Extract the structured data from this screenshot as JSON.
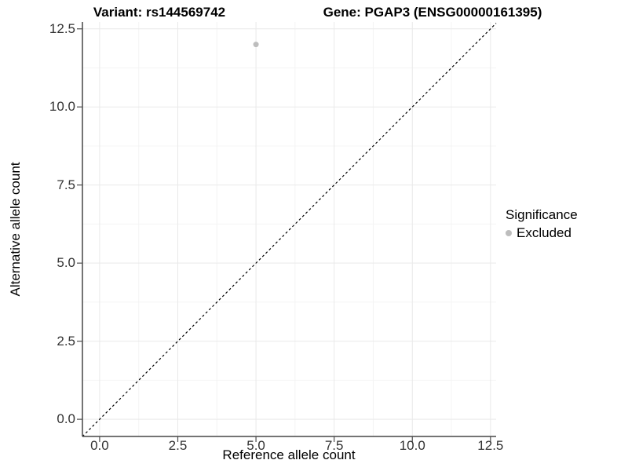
{
  "header": {
    "title_left": "Variant: rs144569742",
    "title_right": "Gene: PGAP3 (ENSG00000161395)"
  },
  "axes": {
    "x_label": "Reference allele count",
    "y_label": "Alternative allele count"
  },
  "legend": {
    "title": "Significance",
    "items": [
      {
        "label": "Excluded",
        "color": "#bdbdbd"
      }
    ]
  },
  "colors": {
    "axis_line": "#464646",
    "tick_mark": "#4d4d4d",
    "tick_text": "#333333",
    "grid_major": "#e9e9e9",
    "grid_minor": "#f4f4f4",
    "identity_line": "#000000",
    "point": "#bdbdbd",
    "background": "#ffffff"
  },
  "chart_data": {
    "type": "scatter",
    "title": "Variant: rs144569742 — Gene: PGAP3 (ENSG00000161395)",
    "xlabel": "Reference allele count",
    "ylabel": "Alternative allele count",
    "xlim": [
      -0.55,
      12.68
    ],
    "ylim": [
      -0.55,
      12.72
    ],
    "x_ticks": [
      0,
      2.5,
      5,
      7.5,
      10,
      12.5
    ],
    "y_ticks": [
      0,
      2.5,
      5,
      7.5,
      10,
      12.5
    ],
    "minor_x_ticks": [
      1.25,
      3.75,
      6.25,
      8.75,
      11.25
    ],
    "minor_y_ticks": [
      1.25,
      3.75,
      6.25,
      8.75,
      11.25
    ],
    "grid": "major+minor",
    "legend_position": "right",
    "series": [
      {
        "name": "Excluded",
        "color": "#bdbdbd",
        "points": [
          [
            5,
            12
          ]
        ]
      }
    ],
    "reference_line": {
      "kind": "identity y=x",
      "style": "dashed",
      "color": "#000000"
    }
  }
}
